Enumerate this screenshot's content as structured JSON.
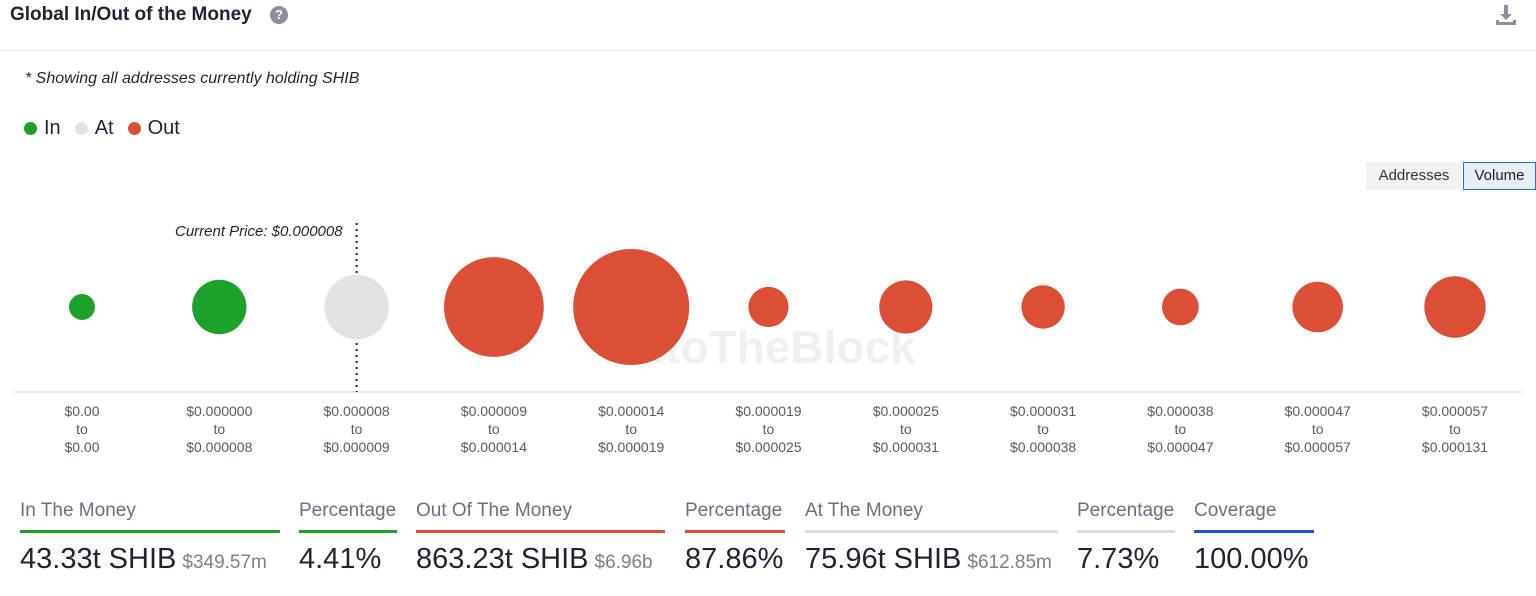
{
  "header": {
    "title": "Global In/Out of the Money",
    "help_icon": "help-circle-icon",
    "download_icon": "download-icon"
  },
  "note": "* Showing all addresses currently holding SHIB",
  "legend": [
    {
      "label": "In",
      "color": "#1ea12a"
    },
    {
      "label": "At",
      "color": "#e3e3e3"
    },
    {
      "label": "Out",
      "color": "#dc4f37"
    }
  ],
  "toggle": {
    "addresses_label": "Addresses",
    "volume_label": "Volume",
    "selected": "Volume"
  },
  "chart_data": {
    "type": "scatter",
    "current_price_label": "Current Price: $0.000008",
    "current_price_index": 2,
    "watermark": "IntoTheBlock",
    "categories": [
      {
        "from": "$0.00",
        "to": "$0.00",
        "status": "In",
        "relative_volume": 0.05
      },
      {
        "from": "$0.000000",
        "to": "$0.000008",
        "status": "In",
        "relative_volume": 0.22
      },
      {
        "from": "$0.000008",
        "to": "$0.000009",
        "status": "At",
        "relative_volume": 0.31
      },
      {
        "from": "$0.000009",
        "to": "$0.000014",
        "status": "Out",
        "relative_volume": 0.74
      },
      {
        "from": "$0.000014",
        "to": "$0.000019",
        "status": "Out",
        "relative_volume": 1.0
      },
      {
        "from": "$0.000019",
        "to": "$0.000025",
        "status": "Out",
        "relative_volume": 0.12
      },
      {
        "from": "$0.000025",
        "to": "$0.000031",
        "status": "Out",
        "relative_volume": 0.21
      },
      {
        "from": "$0.000031",
        "to": "$0.000038",
        "status": "Out",
        "relative_volume": 0.14
      },
      {
        "from": "$0.000038",
        "to": "$0.000047",
        "status": "Out",
        "relative_volume": 0.1
      },
      {
        "from": "$0.000047",
        "to": "$0.000057",
        "status": "Out",
        "relative_volume": 0.19
      },
      {
        "from": "$0.000057",
        "to": "$0.000131",
        "status": "Out",
        "relative_volume": 0.28
      }
    ],
    "range_connector": "to"
  },
  "stats": [
    {
      "label": "In The Money",
      "value": "43.33t SHIB",
      "sub": "$349.57m",
      "color": "#1ea12a"
    },
    {
      "label": "Percentage",
      "value": "4.41%",
      "sub": "",
      "color": "#1ea12a"
    },
    {
      "label": "Out Of The Money",
      "value": "863.23t SHIB",
      "sub": "$6.96b",
      "color": "#dc4f37"
    },
    {
      "label": "Percentage",
      "value": "87.86%",
      "sub": "",
      "color": "#dc4f37"
    },
    {
      "label": "At The Money",
      "value": "75.96t SHIB",
      "sub": "$612.85m",
      "color": "#dcdcdc"
    },
    {
      "label": "Percentage",
      "value": "7.73%",
      "sub": "",
      "color": "#dcdcdc"
    },
    {
      "label": "Coverage",
      "value": "100.00%",
      "sub": "",
      "color": "#1f4fd8"
    }
  ]
}
